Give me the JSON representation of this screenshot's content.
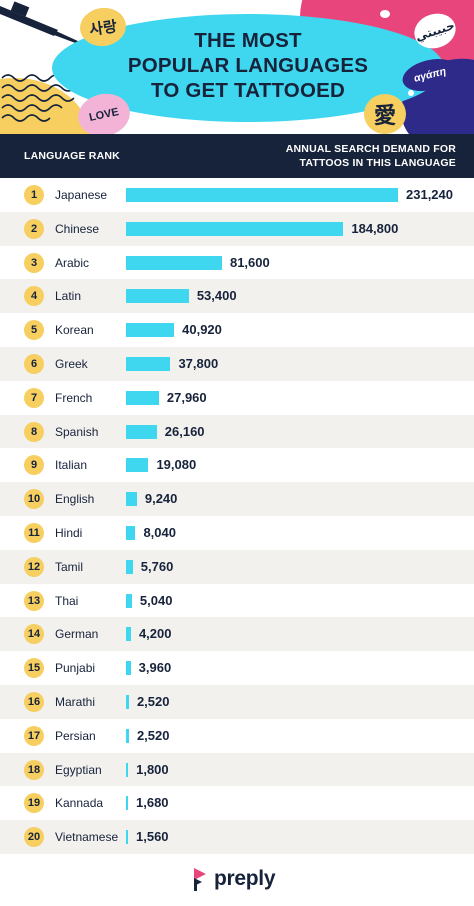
{
  "header": {
    "title_lines": [
      "THE MOST",
      "POPULAR LANGUAGES",
      "TO GET TATTOOED"
    ],
    "stickers": {
      "korean": "사랑",
      "love": "LOVE",
      "greek": "αγάπη",
      "arabic": "حبيبتي",
      "chinese": "愛"
    }
  },
  "table": {
    "col_rank_label": "LANGUAGE RANK",
    "col_demand_lines": [
      "ANNUAL SEARCH DEMAND FOR",
      "TATTOOS IN THIS LANGUAGE"
    ]
  },
  "colors": {
    "navy": "#17233b",
    "bar": "#3fd7ef",
    "badge": "#f6cf60",
    "row_shade": "#f2f1ee",
    "brand_pink": "#e8457d"
  },
  "chart_data": {
    "type": "bar",
    "orientation": "horizontal",
    "categories": [
      "Japanese",
      "Chinese",
      "Arabic",
      "Latin",
      "Korean",
      "Greek",
      "French",
      "Spanish",
      "Italian",
      "English",
      "Hindi",
      "Tamil",
      "Thai",
      "German",
      "Punjabi",
      "Marathi",
      "Persian",
      "Egyptian",
      "Kannada",
      "Vietnamese"
    ],
    "ranks": [
      "1",
      "2",
      "3",
      "4",
      "5",
      "6",
      "7",
      "8",
      "9",
      "10",
      "11",
      "12",
      "13",
      "14",
      "15",
      "16",
      "17",
      "18",
      "19",
      "20"
    ],
    "values": [
      231240,
      184800,
      81600,
      53400,
      40920,
      37800,
      27960,
      26160,
      19080,
      9240,
      8040,
      5760,
      5040,
      4200,
      3960,
      2520,
      2520,
      1800,
      1680,
      1560
    ],
    "value_labels": [
      "231,240",
      "184,800",
      "81,600",
      "53,400",
      "40,920",
      "37,800",
      "27,960",
      "26,160",
      "19,080",
      "9,240",
      "8,040",
      "5,760",
      "5,040",
      "4,200",
      "3,960",
      "2,520",
      "2,520",
      "1,800",
      "1,680",
      "1,560"
    ],
    "title": "THE MOST POPULAR LANGUAGES TO GET TATTOOED",
    "xlabel": "ANNUAL SEARCH DEMAND FOR TATTOOS IN THIS LANGUAGE",
    "ylabel": "LANGUAGE RANK",
    "xlim": [
      0,
      231240
    ],
    "grid": false,
    "legend": "none"
  },
  "footer": {
    "brand": "preply"
  }
}
